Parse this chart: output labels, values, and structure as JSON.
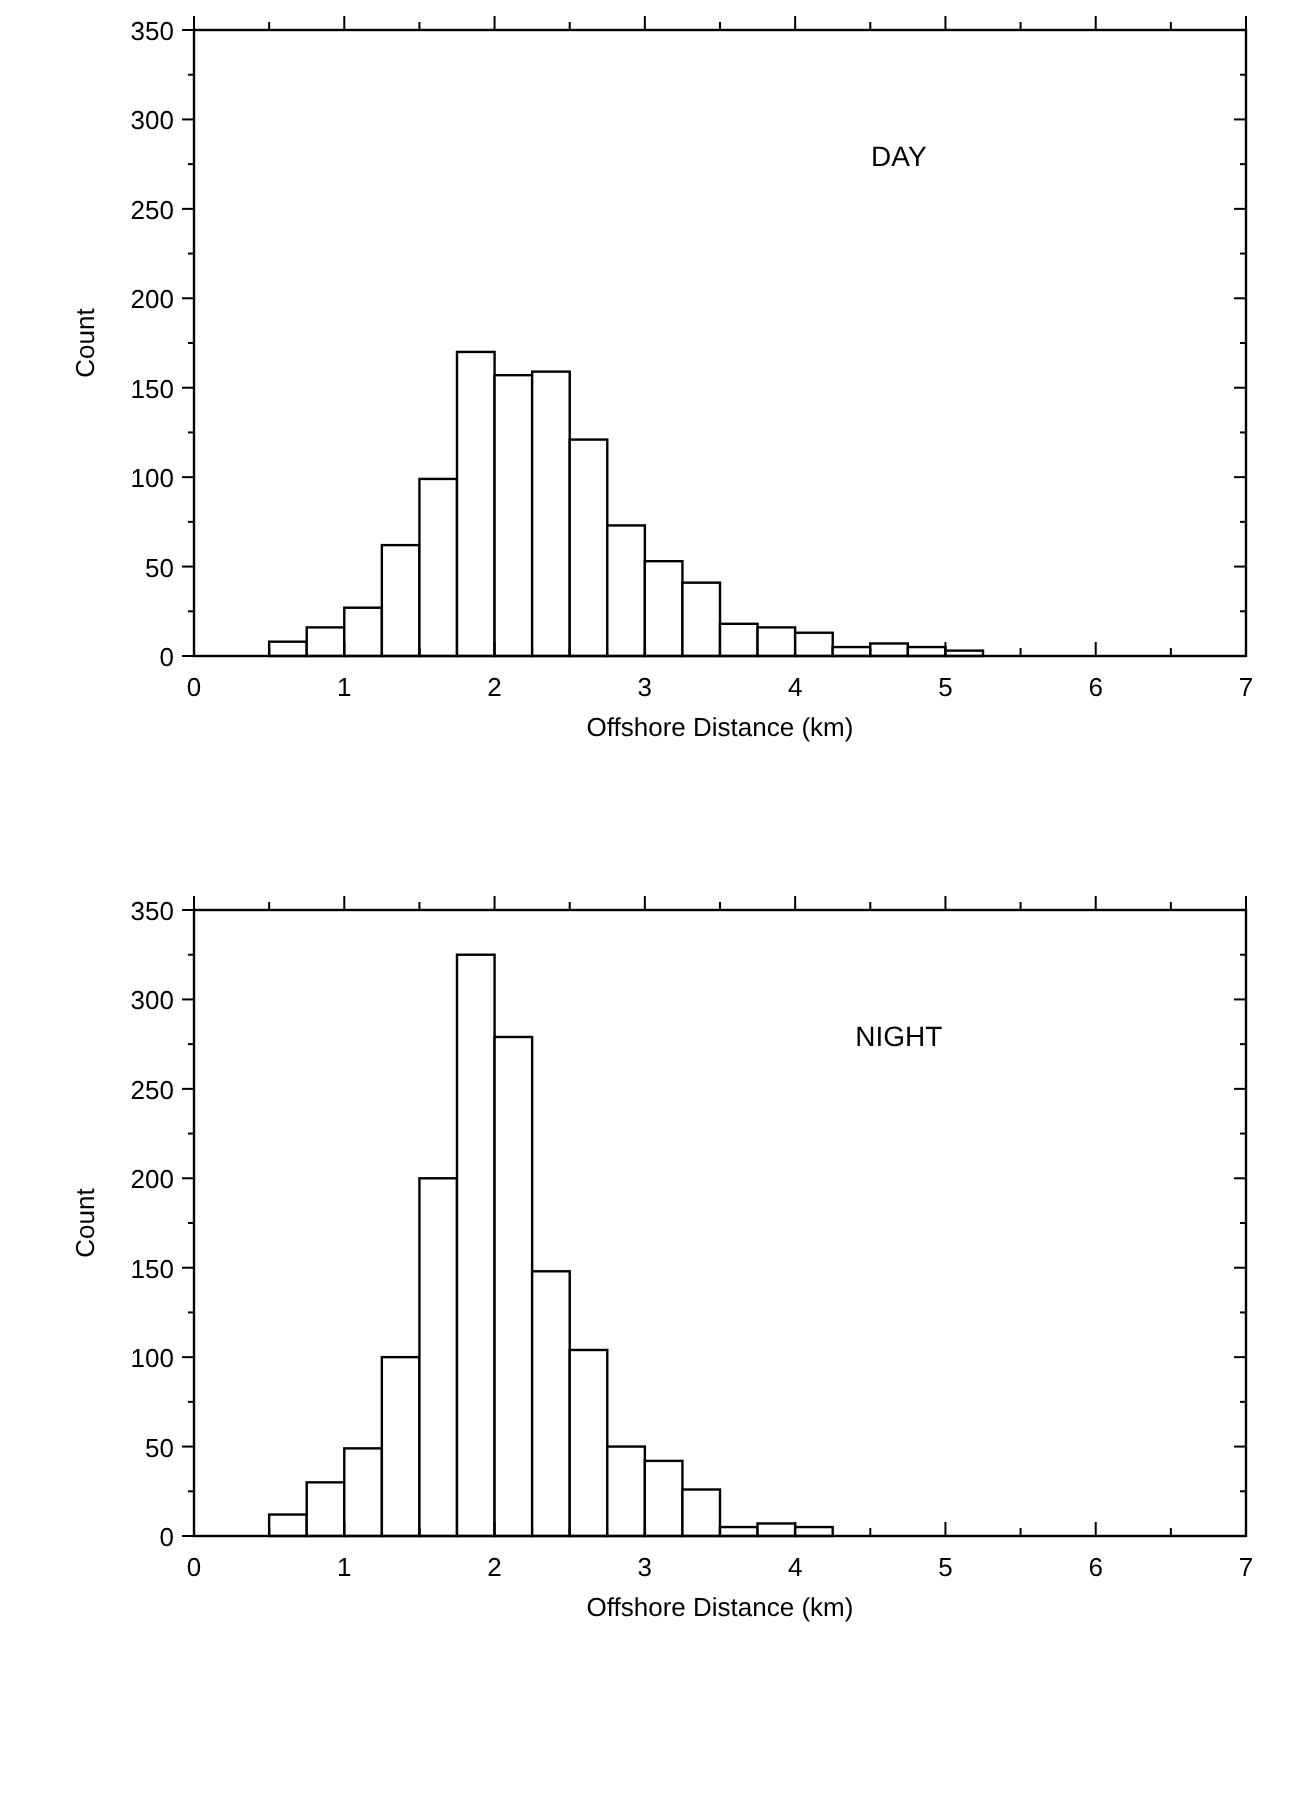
{
  "chart_data": [
    {
      "type": "histogram",
      "title": "DAY",
      "xlabel": "Offshore Distance (km)",
      "ylabel": "Count",
      "bins": [
        0,
        0.25,
        0.5,
        0.75,
        1,
        1.25,
        1.5,
        1.75,
        2,
        2.25,
        2.5,
        2.75,
        3,
        3.25,
        3.5,
        3.75,
        4,
        4.25,
        4.5,
        4.75,
        5,
        5.25,
        5.5,
        5.75,
        6,
        6.25,
        6.5,
        6.75,
        7
      ],
      "values": [
        0,
        0,
        8,
        16,
        27,
        62,
        99,
        170,
        157,
        159,
        121,
        73,
        53,
        41,
        18,
        16,
        13,
        5,
        7,
        5,
        3,
        0,
        0,
        0,
        0,
        0,
        0,
        0
      ],
      "color": "#ffffff",
      "xlim": [
        0,
        7
      ],
      "xticks": [
        0,
        1,
        2,
        3,
        4,
        5,
        6,
        7
      ],
      "ylim": [
        0,
        350
      ],
      "yticks": [
        0,
        50,
        100,
        150,
        200,
        250,
        300,
        350
      ],
      "grid": false
    },
    {
      "type": "histogram",
      "title": "NIGHT",
      "xlabel": "Offshore Distance (km)",
      "ylabel": "Count",
      "bins": [
        0,
        0.25,
        0.5,
        0.75,
        1,
        1.25,
        1.5,
        1.75,
        2,
        2.25,
        2.5,
        2.75,
        3,
        3.25,
        3.5,
        3.75,
        4,
        4.25,
        4.5,
        4.75,
        5,
        5.25,
        5.5,
        5.75,
        6,
        6.25,
        6.5,
        6.75,
        7
      ],
      "values": [
        0,
        0,
        12,
        30,
        49,
        100,
        200,
        325,
        279,
        148,
        104,
        50,
        42,
        26,
        5,
        7,
        5,
        0,
        0,
        0,
        0,
        0,
        0,
        0,
        0,
        0,
        0,
        0
      ],
      "color": "#ffffff",
      "xlim": [
        0,
        7
      ],
      "xticks": [
        0,
        1,
        2,
        3,
        4,
        5,
        6,
        7
      ],
      "ylim": [
        0,
        350
      ],
      "yticks": [
        0,
        50,
        100,
        150,
        200,
        250,
        300,
        350
      ],
      "grid": false
    }
  ]
}
